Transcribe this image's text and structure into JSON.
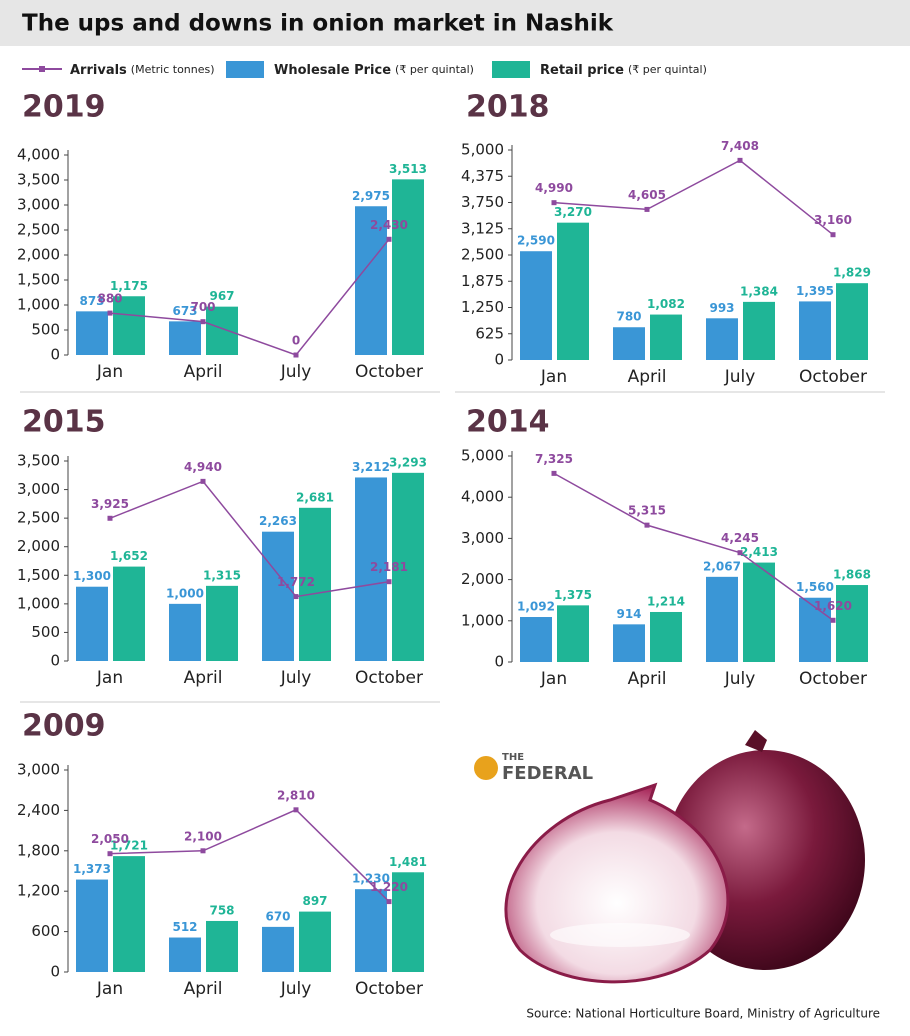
{
  "title": "The ups and downs in onion market in Nashik",
  "legend": [
    {
      "name": "Arrivals",
      "unit": "(Metric tonnes)",
      "color": "#8e4a9e"
    },
    {
      "name": "Wholesale Price",
      "unit": "(₹ per quintal)",
      "color": "#3a96d6"
    },
    {
      "name": "Retail price",
      "unit": "(₹ per quintal)",
      "color": "#1fb596"
    }
  ],
  "source": "Source: National Horticulture Board, Ministry of Agriculture",
  "logo": {
    "small": "THE",
    "big": "FEDERAL"
  },
  "chart_data": [
    {
      "type": "bar",
      "title": "2019",
      "categories": [
        "Jan",
        "April",
        "July",
        "October"
      ],
      "ylim": [
        0,
        4000
      ],
      "yticks": [
        0,
        500,
        {
          "value": 1000,
          "label": "1,000"
        },
        {
          "value": 1500,
          "label": "1,500"
        },
        {
          "value": 2000,
          "label": "2,000"
        },
        {
          "value": 2500,
          "label": "2,500"
        },
        {
          "value": 3000,
          "label": "3,000"
        },
        {
          "value": 3500,
          "label": "3,500"
        },
        {
          "value": 4000,
          "label": "4,000"
        }
      ],
      "y2lim": [
        0,
        4200
      ],
      "series": [
        {
          "values": [
            873,
            673,
            null,
            2975
          ],
          "value_labels": [
            "873",
            "673",
            null,
            "2,975"
          ]
        },
        {
          "values": [
            1175,
            967,
            null,
            3513
          ],
          "value_labels": [
            "1,175",
            "967",
            null,
            "3,513"
          ]
        },
        {
          "type": "line",
          "axis": "y2",
          "values": [
            880,
            700,
            0,
            2430
          ],
          "value_labels": [
            "880",
            "700",
            "0",
            "2,430"
          ]
        }
      ]
    },
    {
      "type": "bar",
      "title": "2018",
      "categories": [
        "Jan",
        "April",
        "July",
        "October"
      ],
      "ylim": [
        0,
        5000
      ],
      "yticks": [
        0,
        625,
        {
          "value": 1250,
          "label": "1,250"
        },
        {
          "value": 1875,
          "label": "1,875"
        },
        {
          "value": 2500,
          "label": "2,500"
        },
        {
          "value": 3125,
          "label": "3,125"
        },
        {
          "value": 3750,
          "label": "3,750"
        },
        {
          "value": 4375,
          "label": "4,375"
        },
        {
          "value": 5000,
          "label": "5,000"
        }
      ],
      "y2lim": [
        -4000,
        8000
      ],
      "series": [
        {
          "values": [
            2590,
            780,
            993,
            1395
          ],
          "value_labels": [
            "2,590",
            "780",
            "993",
            "1,395"
          ]
        },
        {
          "values": [
            3270,
            1082,
            1384,
            1829
          ],
          "value_labels": [
            "3,270",
            "1,082",
            "1,384",
            "1,829"
          ]
        },
        {
          "type": "line",
          "axis": "y2",
          "values": [
            4990,
            4605,
            7408,
            3160
          ],
          "value_labels": [
            "4,990",
            "4,605",
            "7,408",
            "3,160"
          ]
        }
      ]
    },
    {
      "type": "bar",
      "title": "2015",
      "categories": [
        "Jan",
        "April",
        "July",
        "October"
      ],
      "ylim": [
        0,
        3500
      ],
      "yticks": [
        0,
        500,
        {
          "value": 1000,
          "label": "1,000"
        },
        {
          "value": 1500,
          "label": "1,500"
        },
        {
          "value": 2000,
          "label": "2,000"
        },
        {
          "value": 2500,
          "label": "2,500"
        },
        {
          "value": 3000,
          "label": "3,000"
        },
        {
          "value": 3500,
          "label": "3,500"
        }
      ],
      "y2lim": [
        0,
        5500
      ],
      "series": [
        {
          "values": [
            1300,
            1000,
            2263,
            3212
          ],
          "value_labels": [
            "1,300",
            "1,000",
            "2,263",
            "3,212"
          ]
        },
        {
          "values": [
            1652,
            1315,
            2681,
            3293
          ],
          "value_labels": [
            "1,652",
            "1,315",
            "2,681",
            "3,293"
          ]
        },
        {
          "type": "line",
          "axis": "y2",
          "values": [
            3925,
            4940,
            1772,
            2181
          ],
          "value_labels": [
            "3,925",
            "4,940",
            "1,772",
            "2,181"
          ]
        }
      ]
    },
    {
      "type": "bar",
      "title": "2014",
      "categories": [
        "Jan",
        "April",
        "July",
        "October"
      ],
      "ylim": [
        0,
        5000
      ],
      "yticks": [
        0,
        {
          "value": 1000,
          "label": "1,000"
        },
        {
          "value": 2000,
          "label": "2,000"
        },
        {
          "value": 3000,
          "label": "3,000"
        },
        {
          "value": 4000,
          "label": "4,000"
        },
        {
          "value": 5000,
          "label": "5,000"
        }
      ],
      "y2lim": [
        0,
        8000
      ],
      "series": [
        {
          "values": [
            1092,
            914,
            2067,
            1560
          ],
          "value_labels": [
            "1,092",
            "914",
            "2,067",
            "1,560"
          ]
        },
        {
          "values": [
            1375,
            1214,
            2413,
            1868
          ],
          "value_labels": [
            "1,375",
            "1,214",
            "2,413",
            "1,868"
          ]
        },
        {
          "type": "line",
          "axis": "y2",
          "values": [
            7325,
            5315,
            4245,
            1620
          ],
          "value_labels": [
            "7,325",
            "5,315",
            "4,245",
            "1,620"
          ]
        }
      ]
    },
    {
      "type": "bar",
      "title": "2009",
      "categories": [
        "Jan",
        "April",
        "July",
        "October"
      ],
      "ylim": [
        0,
        3000
      ],
      "yticks": [
        0,
        600,
        {
          "value": 1200,
          "label": "1,200"
        },
        {
          "value": 1800,
          "label": "1,800"
        },
        {
          "value": 2400,
          "label": "2,400"
        },
        {
          "value": 3000,
          "label": "3,000"
        }
      ],
      "y2lim": [
        0,
        3500
      ],
      "series": [
        {
          "values": [
            1373,
            512,
            670,
            1230
          ],
          "value_labels": [
            "1,373",
            "512",
            "670",
            "1,230"
          ]
        },
        {
          "values": [
            1721,
            758,
            897,
            1481
          ],
          "value_labels": [
            "1,721",
            "758",
            "897",
            "1,481"
          ]
        },
        {
          "type": "line",
          "axis": "y2",
          "values": [
            2050,
            2100,
            2810,
            1220
          ],
          "value_labels": [
            "2,050",
            "2,100",
            "2,810",
            "1,220"
          ]
        }
      ]
    }
  ]
}
